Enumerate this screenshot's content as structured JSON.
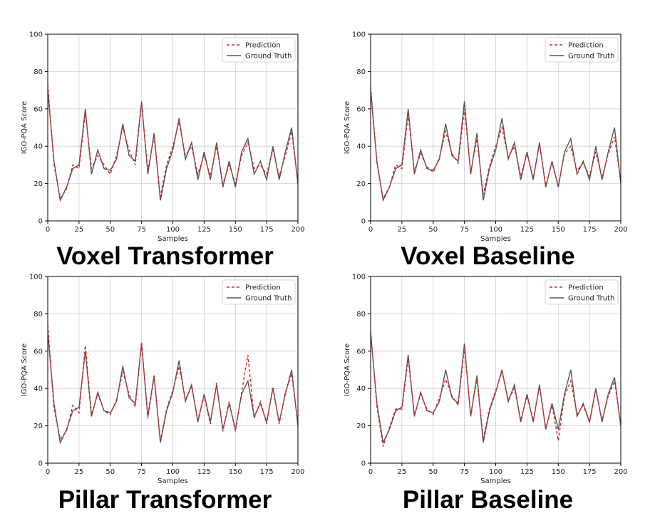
{
  "chart_data": [
    {
      "type": "line",
      "title": "Voxel Transformer",
      "xlabel": "Samples",
      "ylabel": "IGO-PQA Score",
      "xlim": [
        0,
        200
      ],
      "ylim": [
        0,
        100
      ],
      "xticks": [
        0,
        25,
        50,
        75,
        100,
        125,
        150,
        175,
        200
      ],
      "yticks": [
        0,
        20,
        40,
        60,
        80,
        100
      ],
      "grid": true,
      "legend_position": "top-right",
      "x": [
        0,
        5,
        10,
        15,
        20,
        25,
        30,
        35,
        40,
        45,
        50,
        55,
        60,
        65,
        70,
        75,
        80,
        85,
        90,
        95,
        100,
        105,
        110,
        115,
        120,
        125,
        130,
        135,
        140,
        145,
        150,
        155,
        160,
        165,
        170,
        175,
        180,
        185,
        190,
        195,
        200
      ],
      "series": [
        {
          "name": "Prediction",
          "color": "#d62728",
          "style": "dashed",
          "values": [
            73,
            30,
            12,
            17,
            30,
            28,
            58,
            28,
            35,
            30,
            25,
            35,
            50,
            38,
            30,
            63,
            27,
            45,
            13,
            30,
            40,
            53,
            35,
            40,
            25,
            35,
            24,
            40,
            20,
            30,
            20,
            35,
            42,
            28,
            30,
            25,
            38,
            24,
            35,
            48,
            20
          ]
        },
        {
          "name": "Ground Truth",
          "color": "#555555",
          "style": "solid",
          "values": [
            70,
            32,
            11,
            18,
            28,
            30,
            60,
            25,
            38,
            28,
            27,
            33,
            52,
            35,
            32,
            64,
            25,
            47,
            11,
            28,
            38,
            55,
            33,
            42,
            22,
            37,
            22,
            42,
            18,
            32,
            18,
            37,
            44,
            25,
            32,
            22,
            40,
            22,
            37,
            50,
            20
          ]
        }
      ]
    },
    {
      "type": "line",
      "title": "Voxel Baseline",
      "xlabel": "Samples",
      "ylabel": "IGO-PQA Score",
      "xlim": [
        0,
        200
      ],
      "ylim": [
        0,
        100
      ],
      "xticks": [
        0,
        25,
        50,
        75,
        100,
        125,
        150,
        175,
        200
      ],
      "yticks": [
        0,
        20,
        40,
        60,
        80,
        100
      ],
      "grid": true,
      "legend_position": "top-right",
      "x": [
        0,
        5,
        10,
        15,
        20,
        25,
        30,
        35,
        40,
        45,
        50,
        55,
        60,
        65,
        70,
        75,
        80,
        85,
        90,
        95,
        100,
        105,
        110,
        115,
        120,
        125,
        130,
        135,
        140,
        145,
        150,
        155,
        160,
        165,
        170,
        175,
        180,
        185,
        190,
        195,
        200
      ],
      "series": [
        {
          "name": "Prediction",
          "color": "#d62728",
          "style": "dashed",
          "values": [
            72,
            31,
            12,
            18,
            30,
            28,
            57,
            27,
            36,
            29,
            26,
            34,
            48,
            36,
            31,
            60,
            26,
            44,
            14,
            29,
            40,
            50,
            34,
            40,
            24,
            36,
            23,
            41,
            19,
            31,
            19,
            36,
            40,
            27,
            31,
            24,
            37,
            23,
            36,
            45,
            21
          ]
        },
        {
          "name": "Ground Truth",
          "color": "#555555",
          "style": "solid",
          "values": [
            70,
            32,
            11,
            18,
            28,
            30,
            60,
            25,
            38,
            28,
            27,
            33,
            52,
            35,
            32,
            64,
            25,
            47,
            11,
            28,
            38,
            55,
            33,
            42,
            22,
            37,
            22,
            42,
            18,
            32,
            18,
            37,
            44,
            25,
            32,
            22,
            40,
            22,
            37,
            50,
            20
          ]
        }
      ]
    },
    {
      "type": "line",
      "title": "Pillar Transformer",
      "xlabel": "Samples",
      "ylabel": "IGO-PQA Score",
      "xlim": [
        0,
        200
      ],
      "ylim": [
        0,
        100
      ],
      "xticks": [
        0,
        25,
        50,
        75,
        100,
        125,
        150,
        175,
        200
      ],
      "yticks": [
        0,
        20,
        40,
        60,
        80,
        100
      ],
      "grid": true,
      "legend_position": "top-right",
      "x": [
        0,
        5,
        10,
        15,
        20,
        25,
        30,
        35,
        40,
        45,
        50,
        55,
        60,
        65,
        70,
        75,
        80,
        85,
        90,
        95,
        100,
        105,
        110,
        115,
        120,
        125,
        130,
        135,
        140,
        145,
        150,
        155,
        160,
        165,
        170,
        175,
        180,
        185,
        190,
        195,
        200
      ],
      "series": [
        {
          "name": "Prediction",
          "color": "#d62728",
          "style": "dashed",
          "values": [
            74,
            29,
            13,
            17,
            31,
            27,
            63,
            26,
            37,
            28,
            26,
            34,
            49,
            37,
            30,
            65,
            24,
            46,
            12,
            29,
            39,
            52,
            34,
            41,
            23,
            36,
            21,
            43,
            17,
            33,
            17,
            38,
            58,
            24,
            33,
            21,
            41,
            21,
            38,
            48,
            21
          ]
        },
        {
          "name": "Ground Truth",
          "color": "#555555",
          "style": "solid",
          "values": [
            70,
            32,
            11,
            18,
            28,
            30,
            60,
            25,
            38,
            28,
            27,
            33,
            52,
            35,
            32,
            64,
            25,
            47,
            11,
            28,
            38,
            55,
            33,
            42,
            22,
            37,
            22,
            42,
            18,
            32,
            18,
            37,
            44,
            25,
            32,
            22,
            40,
            22,
            37,
            50,
            20
          ]
        }
      ]
    },
    {
      "type": "line",
      "title": "Pillar Baseline",
      "xlabel": "Samples",
      "ylabel": "IGO-PQA Score",
      "xlim": [
        0,
        200
      ],
      "ylim": [
        0,
        100
      ],
      "xticks": [
        0,
        25,
        50,
        75,
        100,
        125,
        150,
        175,
        200
      ],
      "yticks": [
        0,
        20,
        40,
        60,
        80,
        100
      ],
      "grid": true,
      "legend_position": "top-right",
      "x": [
        0,
        5,
        10,
        15,
        20,
        25,
        30,
        35,
        40,
        45,
        50,
        55,
        60,
        65,
        70,
        75,
        80,
        85,
        90,
        95,
        100,
        105,
        110,
        115,
        120,
        125,
        130,
        135,
        140,
        145,
        150,
        155,
        160,
        165,
        170,
        175,
        180,
        185,
        190,
        195,
        200
      ],
      "series": [
        {
          "name": "Prediction",
          "color": "#d62728",
          "style": "dashed",
          "values": [
            71,
            30,
            9,
            19,
            29,
            29,
            56,
            26,
            37,
            29,
            26,
            35,
            45,
            36,
            31,
            62,
            26,
            45,
            13,
            29,
            39,
            49,
            34,
            40,
            23,
            36,
            23,
            41,
            19,
            31,
            12,
            36,
            44,
            26,
            31,
            22,
            39,
            23,
            36,
            44,
            20
          ]
        },
        {
          "name": "Ground Truth",
          "color": "#555555",
          "style": "solid",
          "values": [
            70,
            32,
            11,
            18,
            28,
            30,
            58,
            25,
            38,
            28,
            27,
            33,
            50,
            35,
            32,
            64,
            25,
            47,
            11,
            28,
            38,
            50,
            33,
            42,
            22,
            37,
            22,
            42,
            18,
            32,
            18,
            37,
            50,
            25,
            32,
            22,
            40,
            22,
            37,
            46,
            20
          ]
        }
      ]
    }
  ]
}
